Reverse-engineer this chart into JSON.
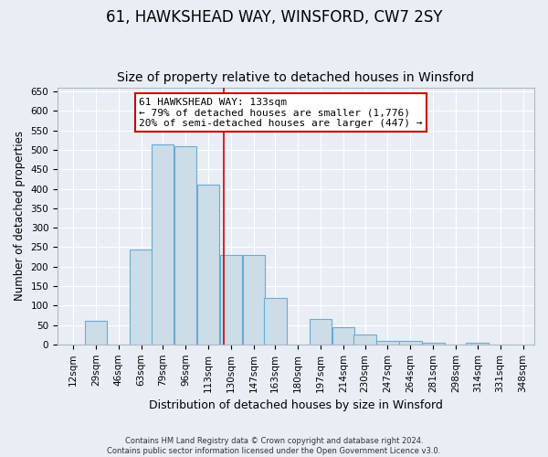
{
  "title": "61, HAWKSHEAD WAY, WINSFORD, CW7 2SY",
  "subtitle": "Size of property relative to detached houses in Winsford",
  "xlabel": "Distribution of detached houses by size in Winsford",
  "ylabel": "Number of detached properties",
  "bin_starts": [
    12,
    29,
    46,
    63,
    79,
    96,
    113,
    130,
    147,
    163,
    180,
    197,
    214,
    230,
    247,
    264,
    281,
    298,
    314,
    331
  ],
  "bin_width": 17,
  "bar_heights": [
    0,
    60,
    0,
    245,
    515,
    510,
    410,
    230,
    230,
    120,
    0,
    65,
    45,
    25,
    10,
    10,
    5,
    0,
    5,
    0
  ],
  "bar_color": "#ccdde8",
  "bar_edge_color": "#6aaad4",
  "property_line_x": 133,
  "property_line_color": "#cc0000",
  "annotation_text": "61 HAWKSHEAD WAY: 133sqm\n← 79% of detached houses are smaller (1,776)\n20% of semi-detached houses are larger (447) →",
  "annotation_box_facecolor": "#ffffff",
  "annotation_box_edgecolor": "#cc0000",
  "ylim": [
    0,
    660
  ],
  "yticks": [
    0,
    50,
    100,
    150,
    200,
    250,
    300,
    350,
    400,
    450,
    500,
    550,
    600,
    650
  ],
  "xlim_left": 12,
  "xlim_right": 365,
  "background_color": "#e8eef4",
  "grid_color": "#ffffff",
  "footer_line1": "Contains HM Land Registry data © Crown copyright and database right 2024.",
  "footer_line2": "Contains public sector information licensed under the Open Government Licence v3.0.",
  "title_fontsize": 12,
  "subtitle_fontsize": 10,
  "xlabel_fontsize": 9,
  "ylabel_fontsize": 8.5,
  "tick_fontsize": 7.5,
  "annotation_fontsize": 8
}
